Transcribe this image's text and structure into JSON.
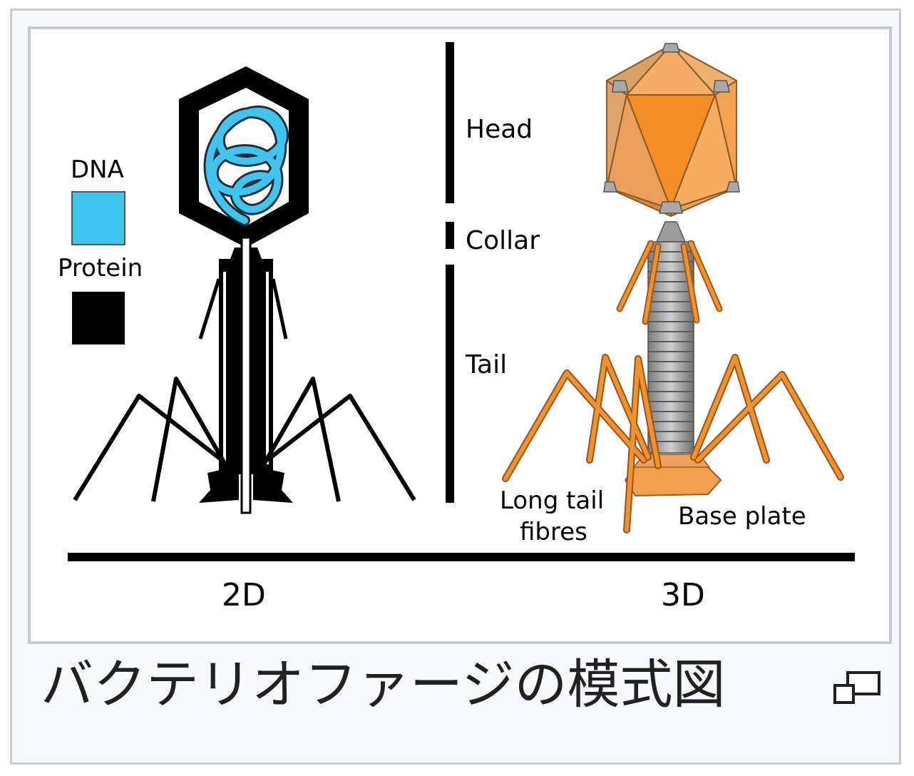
{
  "diagram": {
    "legend": {
      "dna": "DNA",
      "protein": "Protein"
    },
    "parts": {
      "head": "Head",
      "collar": "Collar",
      "tail": "Tail"
    },
    "labels_3d": {
      "long_tail": "Long tail",
      "fibres": "fibres",
      "base_plate": "Base plate"
    },
    "views": {
      "left": "2D",
      "right": "3D"
    },
    "colors": {
      "dna": "#3fc5ee",
      "protein": "#000000",
      "capsid": "#f0922d",
      "tail_sheath": "#9a9a9a"
    }
  },
  "caption": {
    "text": "バクテリオファージの模式図"
  },
  "icons": {
    "magnify": "magnify-icon"
  }
}
